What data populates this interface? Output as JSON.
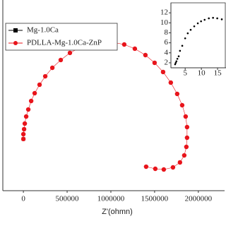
{
  "chart_data": [
    {
      "type": "scatter",
      "x_label": "Z'(ohmn)",
      "xlim": [
        -235000,
        2300000
      ],
      "ylim": [
        0,
        2177000
      ],
      "xticks": [
        0,
        500000,
        1000000,
        1500000,
        2000000
      ],
      "legend": "top-left",
      "series": [
        {
          "name": "Mg-1.0Ca",
          "color": "#000000",
          "marker": "square",
          "x": [
            0
          ],
          "values": [
            590000
          ]
        },
        {
          "name": "PDLLA-Mg-1.0Ca-ZnP",
          "color": "#e8141b",
          "marker": "circle",
          "x": [
            0,
            0,
            8000,
            16000,
            32000,
            56000,
            89000,
            129000,
            185000,
            250000,
            331000,
            427000,
            532000,
            653000,
            766000,
            895000,
            1024000,
            1153000,
            1274000,
            1395000,
            1500000,
            1597000,
            1685000,
            1758000,
            1815000,
            1855000,
            1871000,
            1871000,
            1863000,
            1839000,
            1790000,
            1710000,
            1605000,
            1508000,
            1403000
          ],
          "values": [
            590000,
            645000,
            702000,
            766000,
            847000,
            927000,
            1024000,
            1113000,
            1210000,
            1306000,
            1403000,
            1492000,
            1573000,
            1637000,
            1677000,
            1702000,
            1694000,
            1669000,
            1621000,
            1548000,
            1460000,
            1355000,
            1234000,
            1105000,
            976000,
            847000,
            726000,
            605000,
            500000,
            403000,
            323000,
            266000,
            242000,
            250000,
            274000
          ]
        }
      ]
    },
    {
      "type": "scatter",
      "xlim": [
        0.6,
        17.6
      ],
      "ylim": [
        1,
        14
      ],
      "xticks": [
        5,
        10,
        15
      ],
      "yticks": [
        2,
        4,
        6,
        8,
        10,
        12
      ],
      "series": [
        {
          "color": "#000000",
          "x": [
            1.9,
            2.1,
            2.3,
            2.6,
            3.0,
            3.4,
            4.1,
            5.0,
            5.8,
            6.7,
            7.8,
            8.9,
            9.9,
            11.0,
            12.3,
            13.6,
            14.9,
            16.3
          ],
          "values": [
            1.7,
            2.0,
            2.3,
            2.8,
            3.3,
            4.4,
            5.4,
            6.9,
            7.9,
            8.6,
            9.3,
            9.9,
            10.3,
            10.6,
            10.9,
            11.0,
            10.9,
            10.7
          ]
        }
      ]
    }
  ]
}
